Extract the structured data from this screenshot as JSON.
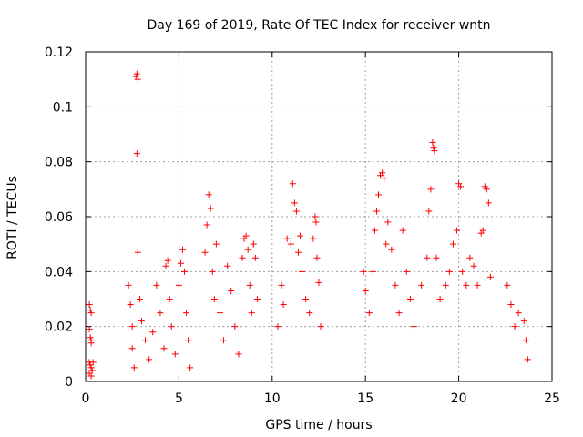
{
  "chart_data": {
    "type": "scatter",
    "title": "Day 169 of 2019, Rate Of TEC Index for receiver wntn",
    "xlabel": "GPS time / hours",
    "ylabel": "ROTI / TECUs",
    "xlim": [
      0,
      25
    ],
    "ylim": [
      0,
      0.12
    ],
    "xticks": [
      0,
      5,
      10,
      15,
      20,
      25
    ],
    "yticks": [
      0,
      0.02,
      0.04,
      0.06,
      0.08,
      0.1,
      0.12
    ],
    "xtick_labels": [
      "0",
      "5",
      "10",
      "15",
      "20",
      "25"
    ],
    "ytick_labels": [
      "0",
      "0.02",
      "0.04",
      "0.06",
      "0.08",
      "0.1",
      "0.12"
    ],
    "grid": true,
    "marker": "+",
    "marker_color": "#ff0000",
    "series": [
      {
        "name": "ROTI",
        "points": [
          [
            0.2,
            0.028
          ],
          [
            0.25,
            0.026
          ],
          [
            0.3,
            0.025
          ],
          [
            0.2,
            0.019
          ],
          [
            0.25,
            0.016
          ],
          [
            0.3,
            0.015
          ],
          [
            0.3,
            0.014
          ],
          [
            0.2,
            0.007
          ],
          [
            0.25,
            0.006
          ],
          [
            0.3,
            0.005
          ],
          [
            0.35,
            0.004
          ],
          [
            0.2,
            0.003
          ],
          [
            0.3,
            0.002
          ],
          [
            0.4,
            0.007
          ],
          [
            2.3,
            0.035
          ],
          [
            2.4,
            0.028
          ],
          [
            2.5,
            0.02
          ],
          [
            2.5,
            0.012
          ],
          [
            2.6,
            0.005
          ],
          [
            2.7,
            0.111
          ],
          [
            2.75,
            0.112
          ],
          [
            2.8,
            0.11
          ],
          [
            2.75,
            0.083
          ],
          [
            2.8,
            0.047
          ],
          [
            2.9,
            0.03
          ],
          [
            3.0,
            0.022
          ],
          [
            3.2,
            0.015
          ],
          [
            3.4,
            0.008
          ],
          [
            3.6,
            0.018
          ],
          [
            3.8,
            0.035
          ],
          [
            4.0,
            0.025
          ],
          [
            4.2,
            0.012
          ],
          [
            4.3,
            0.042
          ],
          [
            4.4,
            0.044
          ],
          [
            4.5,
            0.03
          ],
          [
            4.6,
            0.02
          ],
          [
            4.8,
            0.01
          ],
          [
            5.0,
            0.035
          ],
          [
            5.1,
            0.043
          ],
          [
            5.2,
            0.048
          ],
          [
            5.3,
            0.04
          ],
          [
            5.4,
            0.025
          ],
          [
            5.5,
            0.015
          ],
          [
            5.6,
            0.005
          ],
          [
            6.4,
            0.047
          ],
          [
            6.5,
            0.057
          ],
          [
            6.6,
            0.068
          ],
          [
            6.7,
            0.063
          ],
          [
            6.8,
            0.04
          ],
          [
            6.9,
            0.03
          ],
          [
            7.0,
            0.05
          ],
          [
            7.2,
            0.025
          ],
          [
            7.4,
            0.015
          ],
          [
            7.6,
            0.042
          ],
          [
            7.8,
            0.033
          ],
          [
            8.0,
            0.02
          ],
          [
            8.2,
            0.01
          ],
          [
            8.4,
            0.045
          ],
          [
            8.5,
            0.052
          ],
          [
            8.6,
            0.053
          ],
          [
            8.7,
            0.048
          ],
          [
            8.8,
            0.035
          ],
          [
            8.9,
            0.025
          ],
          [
            9.0,
            0.05
          ],
          [
            9.1,
            0.045
          ],
          [
            9.2,
            0.03
          ],
          [
            10.3,
            0.02
          ],
          [
            10.5,
            0.035
          ],
          [
            10.6,
            0.028
          ],
          [
            10.8,
            0.052
          ],
          [
            11.0,
            0.05
          ],
          [
            11.1,
            0.072
          ],
          [
            11.2,
            0.065
          ],
          [
            11.3,
            0.062
          ],
          [
            11.4,
            0.047
          ],
          [
            11.5,
            0.053
          ],
          [
            11.6,
            0.04
          ],
          [
            11.8,
            0.03
          ],
          [
            12.0,
            0.025
          ],
          [
            12.2,
            0.052
          ],
          [
            12.3,
            0.06
          ],
          [
            12.35,
            0.058
          ],
          [
            12.4,
            0.045
          ],
          [
            12.5,
            0.036
          ],
          [
            12.6,
            0.02
          ],
          [
            14.9,
            0.04
          ],
          [
            15.0,
            0.033
          ],
          [
            15.2,
            0.025
          ],
          [
            15.4,
            0.04
          ],
          [
            15.5,
            0.055
          ],
          [
            15.6,
            0.062
          ],
          [
            15.7,
            0.068
          ],
          [
            15.8,
            0.075
          ],
          [
            15.9,
            0.076
          ],
          [
            16.0,
            0.074
          ],
          [
            16.1,
            0.05
          ],
          [
            16.2,
            0.058
          ],
          [
            16.4,
            0.048
          ],
          [
            16.6,
            0.035
          ],
          [
            16.8,
            0.025
          ],
          [
            17.0,
            0.055
          ],
          [
            17.2,
            0.04
          ],
          [
            17.4,
            0.03
          ],
          [
            17.6,
            0.02
          ],
          [
            18.0,
            0.035
          ],
          [
            18.3,
            0.045
          ],
          [
            18.4,
            0.062
          ],
          [
            18.5,
            0.07
          ],
          [
            18.6,
            0.087
          ],
          [
            18.65,
            0.085
          ],
          [
            18.7,
            0.084
          ],
          [
            18.8,
            0.045
          ],
          [
            19.0,
            0.03
          ],
          [
            19.3,
            0.035
          ],
          [
            19.5,
            0.04
          ],
          [
            19.7,
            0.05
          ],
          [
            19.9,
            0.055
          ],
          [
            20.0,
            0.072
          ],
          [
            20.1,
            0.071
          ],
          [
            20.2,
            0.04
          ],
          [
            20.4,
            0.035
          ],
          [
            20.6,
            0.045
          ],
          [
            20.8,
            0.042
          ],
          [
            21.0,
            0.035
          ],
          [
            21.2,
            0.054
          ],
          [
            21.3,
            0.055
          ],
          [
            21.4,
            0.071
          ],
          [
            21.5,
            0.07
          ],
          [
            21.6,
            0.065
          ],
          [
            21.7,
            0.038
          ],
          [
            22.6,
            0.035
          ],
          [
            22.8,
            0.028
          ],
          [
            23.0,
            0.02
          ],
          [
            23.2,
            0.025
          ],
          [
            23.5,
            0.022
          ],
          [
            23.6,
            0.015
          ],
          [
            23.7,
            0.008
          ]
        ]
      }
    ]
  }
}
